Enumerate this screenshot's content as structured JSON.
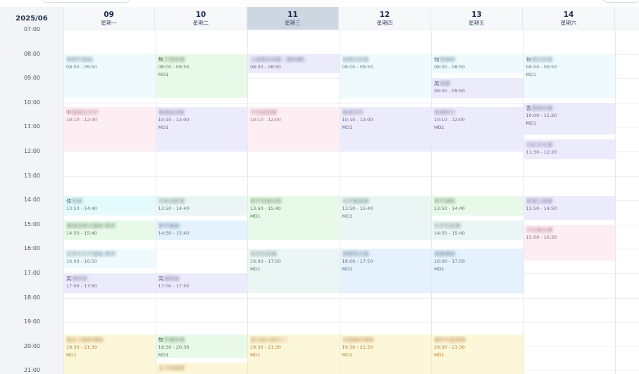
{
  "header": {
    "month": "2025/06"
  },
  "days": [
    {
      "num": "09",
      "weekday": "星期一",
      "selected": false
    },
    {
      "num": "10",
      "weekday": "星期二",
      "selected": false
    },
    {
      "num": "11",
      "weekday": "星期三",
      "selected": true
    },
    {
      "num": "12",
      "weekday": "星期四",
      "selected": false
    },
    {
      "num": "13",
      "weekday": "星期五",
      "selected": false
    },
    {
      "num": "14",
      "weekday": "星期六",
      "selected": false
    }
  ],
  "hours": [
    "07:00",
    "08:00",
    "09:00",
    "10:00",
    "11:00",
    "12:00",
    "13:00",
    "14:00",
    "15:00",
    "16:00",
    "17:00",
    "18:00",
    "19:00",
    "20:00",
    "21:00"
  ],
  "colors": {
    "blue": {
      "bg": "#eefafd",
      "fg": "#5b7a8a"
    },
    "green": {
      "bg": "#e9f9e9",
      "fg": "#4f7d4f"
    },
    "purple": {
      "bg": "#ecebfb",
      "fg": "#6a6290"
    },
    "pink": {
      "bg": "#fdeef3",
      "fg": "#a0607a"
    },
    "cyan": {
      "bg": "#e4fafc",
      "fg": "#4d8088"
    },
    "teal": {
      "bg": "#ebf6f4",
      "fg": "#557a75"
    },
    "sky": {
      "bg": "#e5f1fc",
      "fg": "#56728f"
    },
    "yellow": {
      "bg": "#fdf7d9",
      "fg": "#b07e3a"
    }
  },
  "events": [
    {
      "day": 0,
      "start": "08:00",
      "end": "09:50",
      "color": "blue",
      "title": "",
      "blur": "物理学基础",
      "time": "08:00 - 09:50",
      "room": ""
    },
    {
      "day": 0,
      "start": "10:10",
      "end": "12:00",
      "color": "pink",
      "title": "中",
      "blur": "国语言文学",
      "time": "10:10 - 12:00",
      "room": ""
    },
    {
      "day": 0,
      "start": "13:50",
      "end": "14:40",
      "color": "cyan",
      "title": "体",
      "blur": "育课",
      "time": "13:50 - 14:40",
      "room": ""
    },
    {
      "day": 0,
      "start": "14:50",
      "end": "15:40",
      "color": "green",
      "title": "",
      "blur": "普通话表达基础 精讲",
      "time": "14:50 - 15:40",
      "room": ""
    },
    {
      "day": 0,
      "start": "16:00",
      "end": "16:50",
      "color": "blue",
      "title": "",
      "blur": "应用文写作基础 精讲",
      "time": "16:00 - 16:50",
      "room": ""
    },
    {
      "day": 0,
      "start": "17:00",
      "end": "17:50",
      "color": "purple",
      "title": "英",
      "blur": "语听说",
      "time": "17:00 - 17:50",
      "room": ""
    },
    {
      "day": 0,
      "start": "19:30",
      "end": "21:30",
      "color": "yellow",
      "title": "",
      "blur": "晚自习辅导课程",
      "time": "19:30 - 21:30",
      "room": "MD1"
    },
    {
      "day": 1,
      "start": "08:00",
      "end": "09:50",
      "color": "green",
      "title": "数",
      "blur": "字游戏课",
      "time": "08:00 - 09:50",
      "room": "MD1"
    },
    {
      "day": 1,
      "start": "10:10",
      "end": "12:00",
      "color": "purple",
      "title": "",
      "blur": "普通话训练",
      "time": "10:10 - 12:00",
      "room": "MD1"
    },
    {
      "day": 1,
      "start": "13:50",
      "end": "14:40",
      "color": "teal",
      "title": "",
      "blur": "形体训练课",
      "time": "13:50 - 14:40",
      "room": ""
    },
    {
      "day": 1,
      "start": "14:50",
      "end": "15:40",
      "color": "sky",
      "title": "",
      "blur": "数学基础",
      "time": "14:50 - 15:40",
      "room": ""
    },
    {
      "day": 1,
      "start": "17:00",
      "end": "17:50",
      "color": "purple",
      "title": "英",
      "blur": "语阅读",
      "time": "17:00 - 17:50",
      "room": ""
    },
    {
      "day": 1,
      "start": "19:30",
      "end": "20:30",
      "color": "green",
      "title": "数",
      "blur": "学辅导课",
      "time": "19:30 - 20:30",
      "room": "MD1"
    },
    {
      "day": 1,
      "start": "20:40",
      "end": "21:30",
      "color": "yellow",
      "title": "",
      "blur": "自习答疑课",
      "time": "",
      "room": ""
    },
    {
      "day": 2,
      "start": "08:00",
      "end": "08:50",
      "color": "purple",
      "title": "",
      "blur": "口语表达训练（第四期）",
      "time": "08:00 - 08:50",
      "room": ""
    },
    {
      "day": 2,
      "start": "10:10",
      "end": "12:00",
      "color": "pink",
      "title": "",
      "blur": "中文阅读课",
      "time": "10:10 - 12:00",
      "room": ""
    },
    {
      "day": 2,
      "start": "13:50",
      "end": "15:40",
      "color": "green",
      "title": "",
      "blur": "数学思维训练",
      "time": "13:50 - 15:40",
      "room": "MD1"
    },
    {
      "day": 2,
      "start": "16:00",
      "end": "17:50",
      "color": "teal",
      "title": "",
      "blur": "科学实验课",
      "time": "16:00 - 17:50",
      "room": "MD1"
    },
    {
      "day": 2,
      "start": "19:30",
      "end": "21:30",
      "color": "yellow",
      "title": "",
      "blur": "语文能力提升门",
      "time": "19:30 - 21:30",
      "room": "MD1"
    },
    {
      "day": 3,
      "start": "08:00",
      "end": "09:50",
      "color": "blue",
      "title": "",
      "blur": "物理实验课",
      "time": "08:00 - 09:50",
      "room": ""
    },
    {
      "day": 3,
      "start": "10:10",
      "end": "12:00",
      "color": "purple",
      "title": "",
      "blur": "英语写作",
      "time": "10:10 - 12:00",
      "room": "MD1"
    },
    {
      "day": 3,
      "start": "13:50",
      "end": "15:40",
      "color": "teal",
      "title": "",
      "blur": "化学基础课",
      "time": "13:50 - 15:40",
      "room": "MD1"
    },
    {
      "day": 3,
      "start": "16:00",
      "end": "17:50",
      "color": "sky",
      "title": "",
      "blur": "地理常识课",
      "time": "16:00 - 17:50",
      "room": "MD1"
    },
    {
      "day": 3,
      "start": "19:30",
      "end": "21:30",
      "color": "yellow",
      "title": "",
      "blur": "专题辅导课程",
      "time": "19:30 - 21:30",
      "room": "MD1"
    },
    {
      "day": 4,
      "start": "08:00",
      "end": "08:50",
      "color": "blue",
      "title": "物",
      "blur": "理课程",
      "time": "08:00 - 08:50",
      "room": ""
    },
    {
      "day": 4,
      "start": "09:00",
      "end": "09:50",
      "color": "purple",
      "title": "英",
      "blur": "语课",
      "time": "09:00 - 09:50",
      "room": ""
    },
    {
      "day": 4,
      "start": "10:10",
      "end": "12:00",
      "color": "purple",
      "title": "",
      "blur": "英语听力",
      "time": "10:10 - 12:00",
      "room": "MD1"
    },
    {
      "day": 4,
      "start": "13:50",
      "end": "14:40",
      "color": "green",
      "title": "",
      "blur": "数学课程",
      "time": "13:50 - 14:40",
      "room": ""
    },
    {
      "day": 4,
      "start": "14:50",
      "end": "15:40",
      "color": "teal",
      "title": "",
      "blur": "化学实验课",
      "time": "14:50 - 15:40",
      "room": ""
    },
    {
      "day": 4,
      "start": "16:00",
      "end": "17:50",
      "color": "sky",
      "title": "",
      "blur": "地理课程",
      "time": "16:00 - 17:50",
      "room": "MD1"
    },
    {
      "day": 4,
      "start": "19:30",
      "end": "21:30",
      "color": "yellow",
      "title": "",
      "blur": "辅导专题课程",
      "time": "19:30 - 21:30",
      "room": "MD1"
    },
    {
      "day": 5,
      "start": "08:00",
      "end": "09:50",
      "color": "blue",
      "title": "物",
      "blur": "理实验课",
      "time": "08:00 - 09:50",
      "room": "MD1"
    },
    {
      "day": 5,
      "start": "10:00",
      "end": "11:20",
      "color": "purple",
      "title": "香",
      "blur": "港语言课",
      "time": "10:00 - 11:20",
      "room": "MD1"
    },
    {
      "day": 5,
      "start": "11:30",
      "end": "12:20",
      "color": "purple",
      "title": "",
      "blur": "历史文化课",
      "time": "11:30 - 12:20",
      "room": ""
    },
    {
      "day": 5,
      "start": "13:50",
      "end": "14:50",
      "color": "purple",
      "title": "",
      "blur": "英语口语课",
      "time": "13:50 - 14:50",
      "room": ""
    },
    {
      "day": 5,
      "start": "15:00",
      "end": "16:30",
      "color": "pink",
      "title": "",
      "blur": "中文表达课",
      "time": "15:00 - 16:30",
      "room": ""
    }
  ]
}
